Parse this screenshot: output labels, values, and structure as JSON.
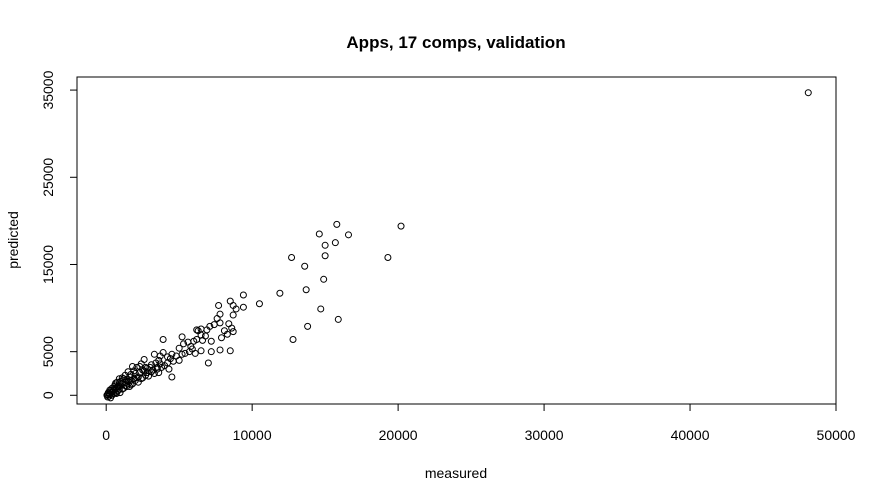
{
  "chart_data": {
    "type": "scatter",
    "title": "Apps, 17 comps, validation",
    "xlabel": "measured",
    "ylabel": "predicted",
    "xlim": [
      -2000,
      50000
    ],
    "ylim": [
      -1000,
      36500
    ],
    "xticks": [
      0,
      10000,
      20000,
      30000,
      40000,
      50000
    ],
    "xtick_labels": [
      "0",
      "10000",
      "20000",
      "30000",
      "40000",
      "50000"
    ],
    "yticks": [
      0,
      5000,
      15000,
      25000,
      35000
    ],
    "ytick_labels": [
      "0",
      "5000",
      "15000",
      "25000",
      "35000"
    ],
    "grid": false,
    "marker": "open-circle",
    "color": "#000000",
    "series": [
      {
        "values": [
          [
            48100,
            34700
          ],
          [
            20200,
            19400
          ],
          [
            19300,
            15800
          ],
          [
            15800,
            19600
          ],
          [
            16600,
            18400
          ],
          [
            15700,
            17500
          ],
          [
            14600,
            18500
          ],
          [
            15000,
            17200
          ],
          [
            15000,
            16000
          ],
          [
            14900,
            13300
          ],
          [
            14700,
            9900
          ],
          [
            15900,
            8700
          ],
          [
            13800,
            7900
          ],
          [
            12700,
            15800
          ],
          [
            13600,
            14800
          ],
          [
            13700,
            12100
          ],
          [
            12800,
            6400
          ],
          [
            11900,
            11700
          ],
          [
            10500,
            10500
          ],
          [
            9400,
            11500
          ],
          [
            9400,
            10100
          ],
          [
            8700,
            10300
          ],
          [
            8900,
            9900
          ],
          [
            8500,
            10800
          ],
          [
            8700,
            9200
          ],
          [
            8400,
            8200
          ],
          [
            8600,
            7700
          ],
          [
            8700,
            7300
          ],
          [
            8300,
            7000
          ],
          [
            7700,
            10300
          ],
          [
            7800,
            9300
          ],
          [
            7600,
            8800
          ],
          [
            7800,
            8300
          ],
          [
            8100,
            7400
          ],
          [
            7900,
            6600
          ],
          [
            8500,
            5100
          ],
          [
            7800,
            5200
          ],
          [
            7200,
            5000
          ],
          [
            7000,
            3700
          ],
          [
            7400,
            8100
          ],
          [
            7100,
            7900
          ],
          [
            6900,
            7500
          ],
          [
            6800,
            6800
          ],
          [
            6500,
            7600
          ],
          [
            6300,
            7400
          ],
          [
            6200,
            7500
          ],
          [
            6500,
            6900
          ],
          [
            6200,
            6400
          ],
          [
            6600,
            6300
          ],
          [
            7200,
            6200
          ],
          [
            6500,
            5100
          ],
          [
            6100,
            4800
          ],
          [
            5800,
            5600
          ],
          [
            5700,
            5000
          ],
          [
            5200,
            6700
          ],
          [
            5300,
            5900
          ],
          [
            5000,
            5400
          ],
          [
            5200,
            4700
          ],
          [
            4800,
            4500
          ],
          [
            4500,
            4700
          ],
          [
            4400,
            4200
          ],
          [
            4200,
            4400
          ],
          [
            4600,
            3900
          ],
          [
            4200,
            3700
          ],
          [
            3900,
            6400
          ],
          [
            3900,
            4900
          ],
          [
            3700,
            4500
          ],
          [
            3600,
            4000
          ],
          [
            3700,
            3600
          ],
          [
            3400,
            3700
          ],
          [
            3500,
            3200
          ],
          [
            3300,
            4700
          ],
          [
            3100,
            3500
          ],
          [
            3200,
            2900
          ],
          [
            3000,
            3200
          ],
          [
            2800,
            3100
          ],
          [
            2800,
            2600
          ],
          [
            2600,
            4100
          ],
          [
            2500,
            2900
          ],
          [
            2400,
            3600
          ],
          [
            2300,
            2600
          ],
          [
            2200,
            2100
          ],
          [
            2100,
            3200
          ],
          [
            2000,
            2500
          ],
          [
            1900,
            1900
          ],
          [
            1800,
            3300
          ],
          [
            1700,
            2400
          ],
          [
            1700,
            1700
          ],
          [
            1600,
            2100
          ],
          [
            1500,
            1300
          ],
          [
            1500,
            2700
          ],
          [
            1400,
            1800
          ],
          [
            1300,
            1500
          ],
          [
            1300,
            2300
          ],
          [
            1200,
            1900
          ],
          [
            1100,
            1300
          ],
          [
            1100,
            700
          ],
          [
            1000,
            1600
          ],
          [
            1000,
            1100
          ],
          [
            900,
            1400
          ],
          [
            900,
            700
          ],
          [
            850,
            1100
          ],
          [
            800,
            500
          ],
          [
            750,
            1500
          ],
          [
            700,
            900
          ],
          [
            650,
            1400
          ],
          [
            650,
            300
          ],
          [
            600,
            700
          ],
          [
            550,
            1000
          ],
          [
            500,
            600
          ],
          [
            500,
            200
          ],
          [
            450,
            400
          ],
          [
            400,
            800
          ],
          [
            400,
            0
          ],
          [
            350,
            300
          ],
          [
            300,
            500
          ],
          [
            300,
            -300
          ],
          [
            250,
            100
          ],
          [
            250,
            600
          ],
          [
            200,
            200
          ],
          [
            200,
            -100
          ],
          [
            150,
            300
          ],
          [
            100,
            100
          ],
          [
            100,
            -200
          ],
          [
            50,
            0
          ],
          [
            600,
            1200
          ],
          [
            700,
            200
          ],
          [
            800,
            1000
          ],
          [
            950,
            300
          ],
          [
            1200,
            800
          ],
          [
            1400,
            1000
          ],
          [
            1600,
            1000
          ],
          [
            1800,
            1300
          ],
          [
            2000,
            1700
          ],
          [
            2200,
            1500
          ],
          [
            2500,
            2000
          ],
          [
            2700,
            2300
          ],
          [
            2900,
            2200
          ],
          [
            3100,
            2700
          ],
          [
            3300,
            2500
          ],
          [
            3500,
            3000
          ],
          [
            3800,
            3200
          ],
          [
            4000,
            3400
          ],
          [
            4300,
            3000
          ],
          [
            4500,
            2100
          ],
          [
            5000,
            4000
          ],
          [
            5400,
            4800
          ],
          [
            5600,
            6100
          ],
          [
            5900,
            5300
          ],
          [
            6000,
            6200
          ],
          [
            1900,
            2800
          ],
          [
            2300,
            3300
          ],
          [
            2600,
            2800
          ],
          [
            1100,
            2000
          ],
          [
            1300,
            1100
          ],
          [
            1700,
            1200
          ],
          [
            2100,
            2000
          ],
          [
            2400,
            1900
          ],
          [
            900,
            1900
          ],
          [
            1500,
            1600
          ],
          [
            2700,
            3200
          ],
          [
            3600,
            2600
          ]
        ]
      }
    ]
  }
}
